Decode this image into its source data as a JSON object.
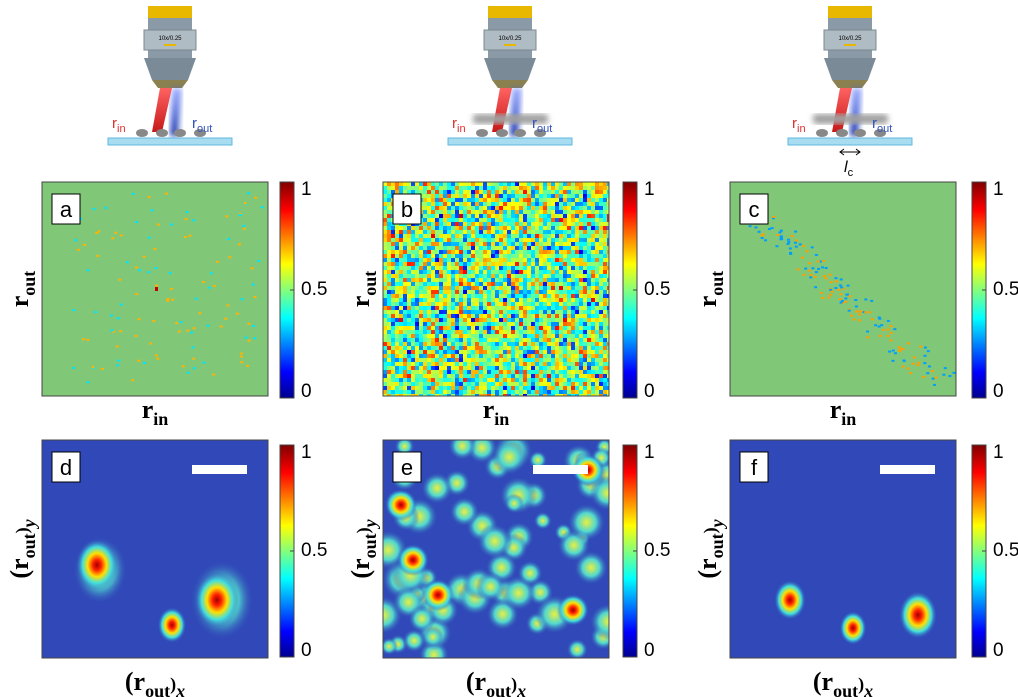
{
  "schematics": [
    {
      "objective_label": "10x/0.25",
      "beam_in": {
        "symbol": "r",
        "sub": "in"
      },
      "beam_out": {
        "symbol": "r",
        "sub": "out"
      }
    },
    {
      "objective_label": "10x/0.25",
      "beam_in": {
        "symbol": "r",
        "sub": "in"
      },
      "beam_out": {
        "symbol": "r",
        "sub": "out"
      }
    },
    {
      "objective_label": "10x/0.25",
      "beam_in": {
        "symbol": "r",
        "sub": "in"
      },
      "beam_out": {
        "symbol": "r",
        "sub": "out"
      },
      "correlation_length": {
        "symbol": "l",
        "sub": "c"
      }
    }
  ],
  "panels": [
    {
      "letter": "a",
      "xlabel": {
        "symbol": "r",
        "sub": "in"
      },
      "ylabel": {
        "symbol": "r",
        "sub": "out"
      },
      "colorbar": {
        "lim": [
          0,
          1
        ],
        "ticks": [
          0,
          0.5,
          1
        ]
      }
    },
    {
      "letter": "b",
      "xlabel": {
        "symbol": "r",
        "sub": "in"
      },
      "ylabel": {
        "symbol": "r",
        "sub": "out"
      },
      "colorbar": {
        "lim": [
          0,
          1
        ],
        "ticks": [
          0,
          0.5,
          1
        ]
      }
    },
    {
      "letter": "c",
      "xlabel": {
        "symbol": "r",
        "sub": "in"
      },
      "ylabel": {
        "symbol": "r",
        "sub": "out"
      },
      "colorbar": {
        "lim": [
          0,
          1
        ],
        "ticks": [
          0,
          0.5,
          1
        ]
      }
    },
    {
      "letter": "d",
      "xlabel": {
        "open": "(",
        "symbol": "r",
        "sub": "out",
        "close": ")",
        "sub2": "x"
      },
      "ylabel": {
        "open": "(",
        "symbol": "r",
        "sub": "out",
        "close": ")",
        "sub2": "y"
      },
      "colorbar": {
        "lim": [
          0,
          1
        ],
        "ticks": [
          0,
          0.5,
          1
        ]
      }
    },
    {
      "letter": "e",
      "xlabel": {
        "open": "(",
        "symbol": "r",
        "sub": "out",
        "close": ")",
        "sub2": "x"
      },
      "ylabel": {
        "open": "(",
        "symbol": "r",
        "sub": "out",
        "close": ")",
        "sub2": "y"
      },
      "colorbar": {
        "lim": [
          0,
          1
        ],
        "ticks": [
          0,
          0.5,
          1
        ]
      }
    },
    {
      "letter": "f",
      "xlabel": {
        "open": "(",
        "symbol": "r",
        "sub": "out",
        "close": ")",
        "sub2": "x"
      },
      "ylabel": {
        "open": "(",
        "symbol": "r",
        "sub": "out",
        "close": ")",
        "sub2": "y"
      },
      "colorbar": {
        "lim": [
          0,
          1
        ],
        "ticks": [
          0,
          0.5,
          1
        ]
      }
    }
  ]
}
